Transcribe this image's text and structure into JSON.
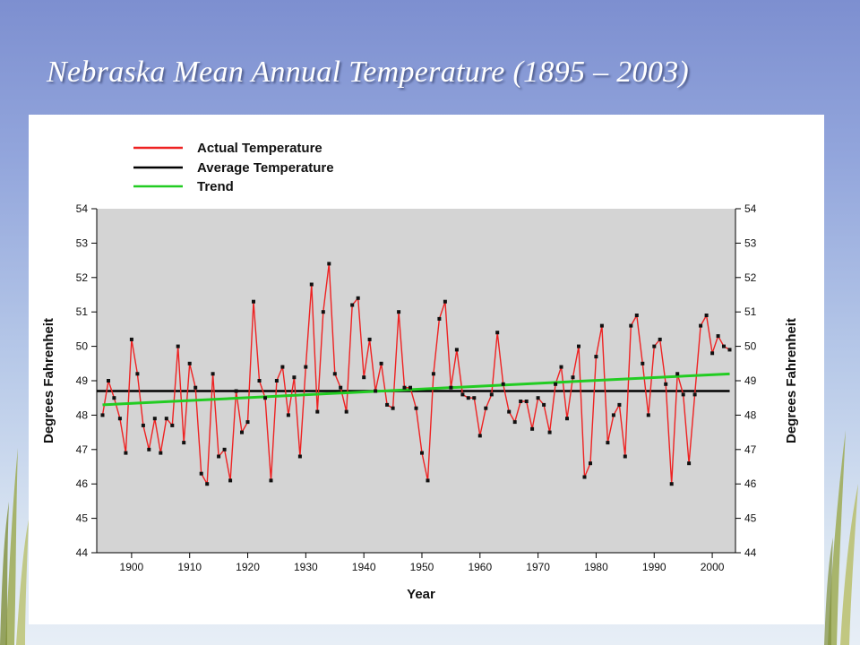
{
  "slide": {
    "title": "Nebraska Mean Annual Temperature (1895 – 2003)"
  },
  "chart_data": {
    "type": "line",
    "xlabel": "Year",
    "ylabel": "Degrees Fahrenheit",
    "ylabel_right": "Degrees Fahrenheit",
    "xlim": [
      1894,
      2004
    ],
    "ylim": [
      44,
      54
    ],
    "x_ticks": [
      1900,
      1910,
      1920,
      1930,
      1940,
      1950,
      1960,
      1970,
      1980,
      1990,
      2000
    ],
    "y_ticks": [
      44,
      45,
      46,
      47,
      48,
      49,
      50,
      51,
      52,
      53,
      54
    ],
    "grid": false,
    "legend_position": "top-left",
    "legend": [
      {
        "label": "Actual Temperature",
        "color": "#ee2222"
      },
      {
        "label": "Average Temperature",
        "color": "#000000"
      },
      {
        "label": "Trend",
        "color": "#22cc22"
      }
    ],
    "colors": {
      "plot_background": "#d4d4d4",
      "actual": "#ee2222",
      "average": "#000000",
      "trend": "#22cc22",
      "markers": "#111111"
    },
    "average": 48.7,
    "trend_start": {
      "x": 1895,
      "y": 48.3
    },
    "trend_end": {
      "x": 2003,
      "y": 49.2
    },
    "series": [
      {
        "name": "Actual Temperature",
        "x": [
          1895,
          1896,
          1897,
          1898,
          1899,
          1900,
          1901,
          1902,
          1903,
          1904,
          1905,
          1906,
          1907,
          1908,
          1909,
          1910,
          1911,
          1912,
          1913,
          1914,
          1915,
          1916,
          1917,
          1918,
          1919,
          1920,
          1921,
          1922,
          1923,
          1924,
          1925,
          1926,
          1927,
          1928,
          1929,
          1930,
          1931,
          1932,
          1933,
          1934,
          1935,
          1936,
          1937,
          1938,
          1939,
          1940,
          1941,
          1942,
          1943,
          1944,
          1945,
          1946,
          1947,
          1948,
          1949,
          1950,
          1951,
          1952,
          1953,
          1954,
          1955,
          1956,
          1957,
          1958,
          1959,
          1960,
          1961,
          1962,
          1963,
          1964,
          1965,
          1966,
          1967,
          1968,
          1969,
          1970,
          1971,
          1972,
          1973,
          1974,
          1975,
          1976,
          1977,
          1978,
          1979,
          1980,
          1981,
          1982,
          1983,
          1984,
          1985,
          1986,
          1987,
          1988,
          1989,
          1990,
          1991,
          1992,
          1993,
          1994,
          1995,
          1996,
          1997,
          1998,
          1999,
          2000,
          2001,
          2002,
          2003
        ],
        "values": [
          48.0,
          49.0,
          48.5,
          47.9,
          46.9,
          50.2,
          49.2,
          47.7,
          47.0,
          47.9,
          46.9,
          47.9,
          47.7,
          50.0,
          47.2,
          49.5,
          48.8,
          46.3,
          46.0,
          49.2,
          46.8,
          47.0,
          46.1,
          48.7,
          47.5,
          47.8,
          51.3,
          49.0,
          48.5,
          46.1,
          49.0,
          49.4,
          48.0,
          49.1,
          46.8,
          49.4,
          51.8,
          48.1,
          51.0,
          52.4,
          49.2,
          48.8,
          48.1,
          51.2,
          51.4,
          49.1,
          50.2,
          48.7,
          49.5,
          48.3,
          48.2,
          51.0,
          48.8,
          48.8,
          48.2,
          46.9,
          46.1,
          49.2,
          50.8,
          51.3,
          48.8,
          49.9,
          48.6,
          48.5,
          48.5,
          47.4,
          48.2,
          48.6,
          50.4,
          48.9,
          48.1,
          47.8,
          48.4,
          48.4,
          47.6,
          48.5,
          48.3,
          47.5,
          48.9,
          49.4,
          47.9,
          49.1,
          50.0,
          46.2,
          46.6,
          49.7,
          50.6,
          47.2,
          48.0,
          48.3,
          46.8,
          50.6,
          50.9,
          49.5,
          48.0,
          50.0,
          50.2,
          48.9,
          46.0,
          49.2,
          48.6,
          46.6,
          48.6,
          50.6,
          50.9,
          49.8,
          50.3,
          50.0,
          49.9
        ]
      }
    ]
  }
}
